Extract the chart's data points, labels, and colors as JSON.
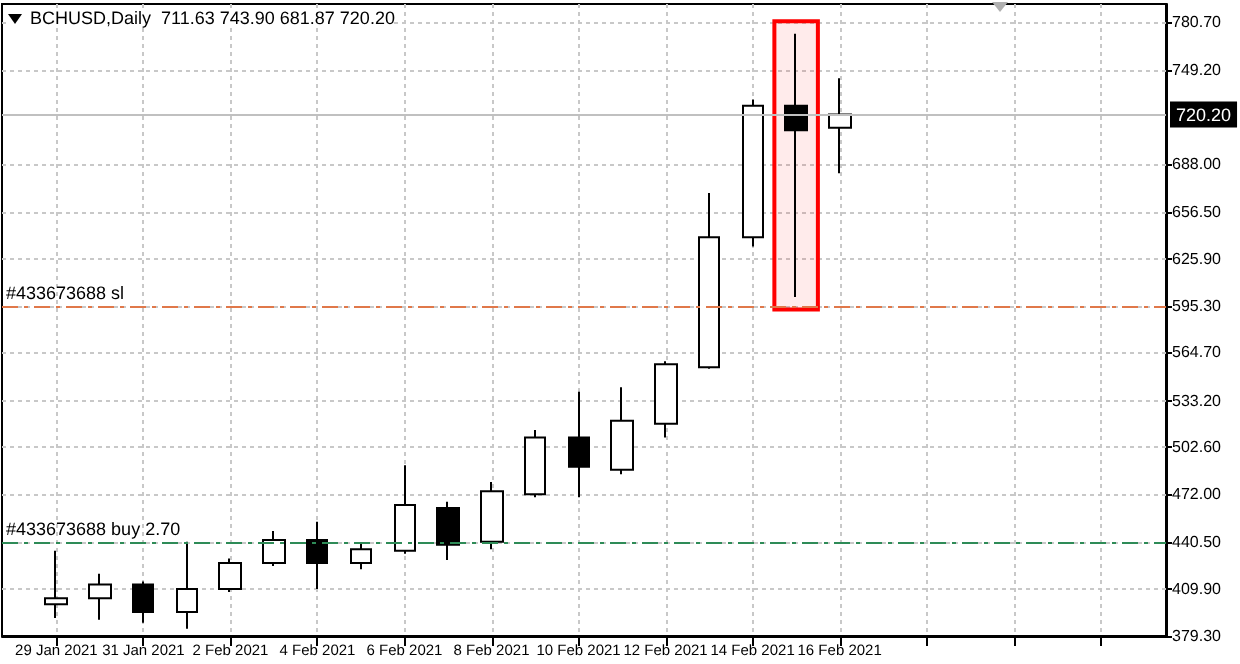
{
  "chart_data": {
    "type": "candlestick",
    "title": "BCHUSD,Daily  711.63 743.90 681.87 720.20",
    "x": [
      "2021-01-29",
      "2021-01-30",
      "2021-01-31",
      "2021-02-01",
      "2021-02-02",
      "2021-02-03",
      "2021-02-04",
      "2021-02-05",
      "2021-02-06",
      "2021-02-07",
      "2021-02-08",
      "2021-02-09",
      "2021-02-10",
      "2021-02-11",
      "2021-02-12",
      "2021-02-13",
      "2021-02-14",
      "2021-02-15",
      "2021-02-16"
    ],
    "ohlc": [
      [
        400,
        435,
        391,
        404
      ],
      [
        404,
        420,
        390,
        413
      ],
      [
        413,
        415,
        388,
        395
      ],
      [
        395,
        441,
        384,
        410
      ],
      [
        410,
        430,
        408,
        427
      ],
      [
        427,
        448,
        425,
        442
      ],
      [
        442,
        454,
        410,
        427
      ],
      [
        427,
        440,
        423,
        436
      ],
      [
        435,
        491,
        433,
        465
      ],
      [
        463,
        467,
        429,
        439
      ],
      [
        441,
        480,
        436,
        474
      ],
      [
        472,
        514,
        470,
        509
      ],
      [
        509,
        539,
        470,
        490
      ],
      [
        488,
        542,
        485,
        520
      ],
      [
        518,
        559,
        509,
        557
      ],
      [
        555,
        669,
        554,
        640
      ],
      [
        640,
        730,
        634,
        726
      ],
      [
        726,
        773,
        601,
        710
      ],
      [
        711.63,
        743.9,
        681.87,
        720.2
      ]
    ],
    "color": "#000000",
    "xlim": [
      "2021-01-27T18:00",
      "2021-02-23T12:00"
    ],
    "xticks": [
      {
        "value": "2021-01-29",
        "label": "29 Jan 2021"
      },
      {
        "value": "2021-01-31",
        "label": "31 Jan 2021"
      },
      {
        "value": "2021-02-02",
        "label": "2 Feb 2021"
      },
      {
        "value": "2021-02-04",
        "label": "4 Feb 2021"
      },
      {
        "value": "2021-02-06",
        "label": "6 Feb 2021"
      },
      {
        "value": "2021-02-08",
        "label": "8 Feb 2021"
      },
      {
        "value": "2021-02-10",
        "label": "10 Feb 2021"
      },
      {
        "value": "2021-02-12",
        "label": "12 Feb 2021"
      },
      {
        "value": "2021-02-14",
        "label": "14 Feb 2021"
      },
      {
        "value": "2021-02-16",
        "label": "16 Feb 2021"
      },
      {
        "value": "2021-02-18",
        "label": null
      },
      {
        "value": "2021-02-20",
        "label": null
      },
      {
        "value": "2021-02-22",
        "label": null
      }
    ],
    "ylim": [
      379.3,
      792.5
    ],
    "yticks": [
      {
        "value": 379.3,
        "label": "379.30"
      },
      {
        "value": 409.9,
        "label": "409.90"
      },
      {
        "value": 440.5,
        "label": "440.50"
      },
      {
        "value": 472.0,
        "label": "472.00"
      },
      {
        "value": 502.6,
        "label": "502.60"
      },
      {
        "value": 533.2,
        "label": "533.20"
      },
      {
        "value": 564.7,
        "label": "564.70"
      },
      {
        "value": 595.3,
        "label": "595.30"
      },
      {
        "value": 625.9,
        "label": "625.90"
      },
      {
        "value": 656.5,
        "label": "656.50"
      },
      {
        "value": 688.0,
        "label": "688.00"
      },
      {
        "value": 749.2,
        "label": "749.20"
      },
      {
        "value": 780.7,
        "label": "780.70"
      }
    ],
    "ref_lines": [
      {
        "axis": "y",
        "value": 595.3,
        "label": "#433673688 sl",
        "color": "#e0784a",
        "line_style": "dashed"
      },
      {
        "axis": "y",
        "value": 440.5,
        "label": "#433673688 buy 2.70",
        "color": "#2e8b57",
        "line_style": "dashed"
      },
      {
        "axis": "y",
        "value": 720.2,
        "label": "720.20",
        "color": "#c0c0c0",
        "line_style": "solid"
      }
    ],
    "bands": [
      {
        "axis": "x",
        "from": "2021-02-14T12:00",
        "to": "2021-02-15T12:00",
        "color": "#ff0000"
      }
    ],
    "grid": true
  }
}
